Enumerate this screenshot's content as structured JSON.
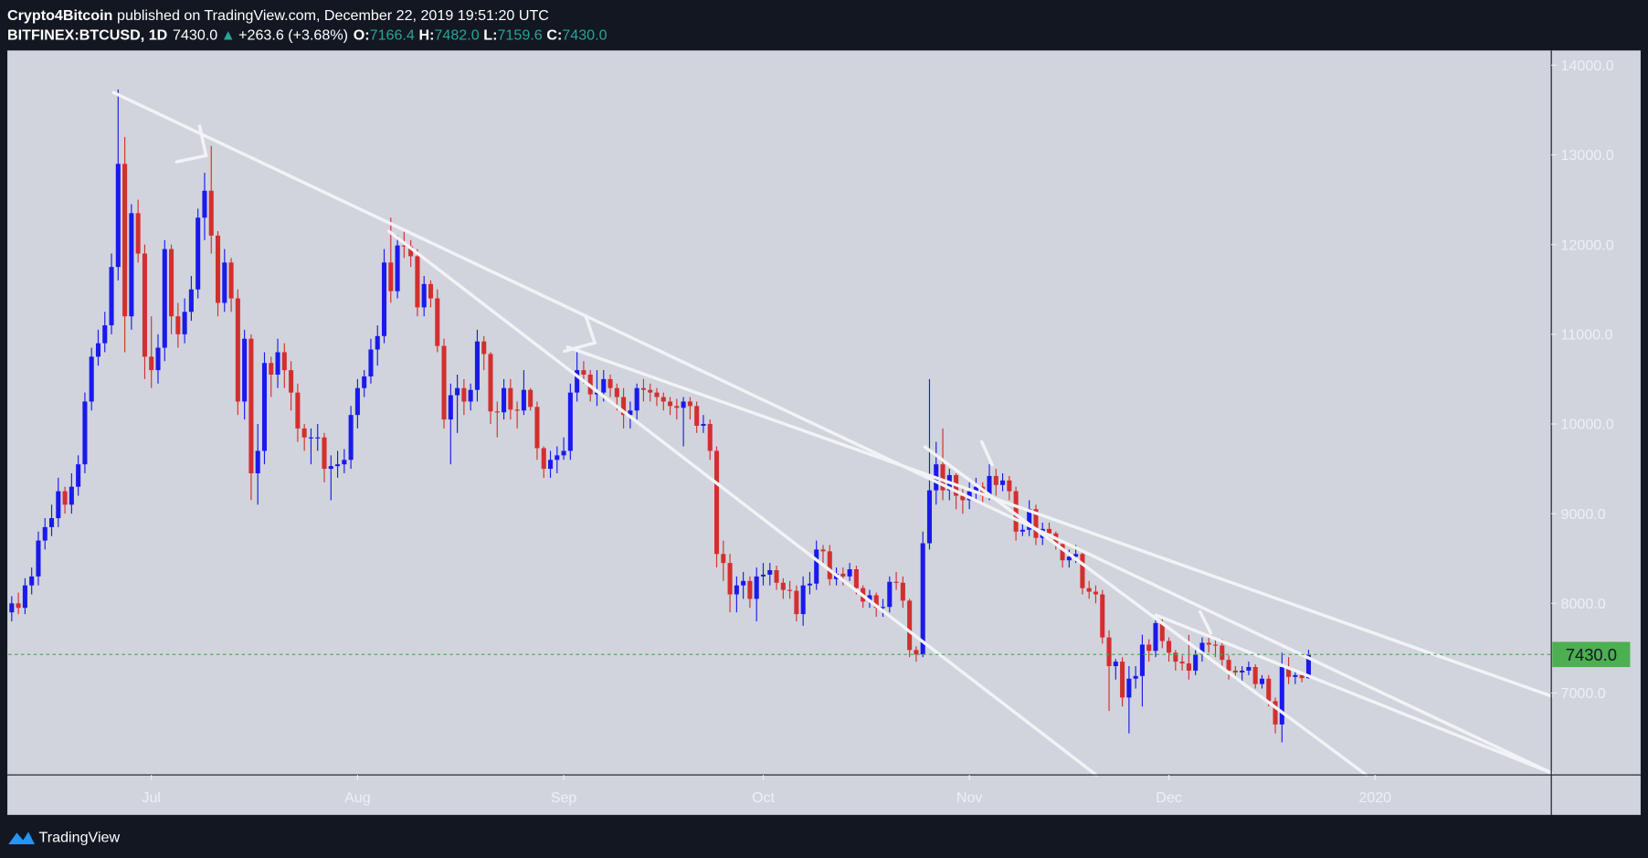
{
  "header": {
    "author": "Crypto4Bitcoin",
    "published": "published on TradingView.com, December 22, 2019 19:51:20 UTC",
    "symbol": "BITFINEX:BTCUSD, 1D",
    "last": "7430.0",
    "direction": "▲",
    "change": "+263.6 (+3.68%)",
    "o_label": "O:",
    "o": "7166.4",
    "h_label": "H:",
    "h": "7482.0",
    "l_label": "L:",
    "l": "7159.6",
    "c_label": "C:",
    "c": "7430.0"
  },
  "footer": {
    "brand": "TradingView"
  },
  "chart_data": {
    "type": "candlestick",
    "up_color": "#1a1aeb",
    "down_color": "#d32f2f",
    "background": "#d1d4dc",
    "ylim": [
      6087,
      14164
    ],
    "xlim": [
      -0.5,
      231.5
    ],
    "yticks": [
      {
        "value": 7000,
        "label": "7000.0"
      },
      {
        "value": 8000,
        "label": "8000.0"
      },
      {
        "value": 9000,
        "label": "9000.0"
      },
      {
        "value": 10000,
        "label": "10000.0"
      },
      {
        "value": 11000,
        "label": "11000.0"
      },
      {
        "value": 12000,
        "label": "12000.0"
      },
      {
        "value": 13000,
        "label": "13000.0"
      },
      {
        "value": 14000,
        "label": "14000.0"
      }
    ],
    "xticks": [
      {
        "value": 21,
        "label": "Jul"
      },
      {
        "value": 52,
        "label": "Aug"
      },
      {
        "value": 83,
        "label": "Sep"
      },
      {
        "value": 113,
        "label": "Oct"
      },
      {
        "value": 144,
        "label": "Nov"
      },
      {
        "value": 174,
        "label": "Dec"
      },
      {
        "value": 205,
        "label": "2020"
      }
    ],
    "last_price": {
      "value": 7430,
      "label": "7430.0",
      "color": "#4caf50"
    },
    "open": [
      7900,
      8000,
      7950,
      8200,
      8300,
      8700,
      8850,
      8950,
      9250,
      9100,
      9300,
      9550,
      10250,
      10750,
      10900,
      11100,
      11750,
      12900,
      11200,
      12350,
      11900,
      10750,
      10600,
      10850,
      11950,
      11200,
      11000,
      11250,
      11500,
      12300,
      12600,
      12100,
      11350,
      11800,
      11400,
      10250,
      10950,
      9450,
      9700,
      10680,
      10550,
      10800,
      10600,
      10350,
      9950,
      9850,
      9850,
      9850,
      9500,
      9530,
      9550,
      9600,
      10100,
      10400,
      10530,
      10830,
      10980,
      11800,
      11480,
      11990,
      11980,
      11870,
      11300,
      11560,
      11400,
      10870,
      10050,
      10320,
      10400,
      10250,
      10380,
      10920,
      10780,
      10140,
      10130,
      10400,
      10160,
      10150,
      10380,
      10190,
      9730,
      9500,
      9600,
      9650,
      9700,
      10350,
      10600,
      10550,
      10330,
      10350,
      10500,
      10400,
      10300,
      10100,
      10150,
      10400,
      10380,
      10350,
      10300,
      10250,
      10200,
      10180,
      10250,
      10200,
      9980,
      10000,
      9700,
      8550,
      8450,
      8100,
      8200,
      8250,
      8050,
      8300,
      8320,
      8370,
      8230,
      8150,
      8140,
      7880,
      8200,
      8220,
      8600,
      8580,
      8270,
      8330,
      8300,
      8380,
      8170,
      8020,
      8090,
      7950,
      7960,
      8240,
      8230,
      8030,
      7480,
      7430,
      8670,
      9260,
      9550,
      9260,
      9430,
      9200,
      9150,
      9250,
      9300,
      9200,
      9420,
      9320,
      9370,
      9250,
      8800,
      8820,
      9050,
      8730,
      8830,
      8780,
      8660,
      8480,
      8520,
      8550,
      8170,
      8130,
      8100,
      7620,
      7300,
      7350,
      6950,
      7160,
      7190,
      7540,
      7470,
      7780,
      7580,
      7450,
      7350,
      7330,
      7250,
      7430,
      7560,
      7540,
      7530,
      7370,
      7250,
      7230,
      7250,
      7290,
      7100,
      7160,
      6910,
      6650,
      7290,
      7180,
      7200,
      7166.4
    ],
    "high": [
      8080,
      8120,
      8280,
      8400,
      8800,
      8950,
      9100,
      9400,
      9300,
      9450,
      9650,
      10350,
      10850,
      11050,
      11250,
      11900,
      13730,
      13200,
      12450,
      12500,
      12000,
      11200,
      11000,
      12050,
      12000,
      11350,
      11400,
      11650,
      12400,
      12800,
      13100,
      12150,
      11950,
      11850,
      11500,
      11050,
      11000,
      10000,
      10800,
      10750,
      10950,
      10900,
      10700,
      10450,
      10000,
      9950,
      10000,
      9900,
      9650,
      9700,
      9720,
      10200,
      10500,
      10600,
      10950,
      11100,
      11950,
      12300,
      12100,
      12150,
      12050,
      11950,
      11650,
      11600,
      11500,
      10950,
      10450,
      10550,
      10500,
      10450,
      11050,
      10980,
      10800,
      10250,
      10500,
      10500,
      10250,
      10600,
      10400,
      10250,
      9750,
      9700,
      9750,
      9850,
      10450,
      10800,
      10700,
      10600,
      10600,
      10600,
      10550,
      10450,
      10400,
      10250,
      10450,
      10500,
      10450,
      10400,
      10350,
      10300,
      10280,
      10300,
      10300,
      10250,
      10100,
      10050,
      9750,
      8700,
      8550,
      8300,
      8350,
      8300,
      8400,
      8450,
      8450,
      8420,
      8280,
      8250,
      8200,
      8300,
      8350,
      8700,
      8650,
      8650,
      8400,
      8400,
      8450,
      8420,
      8200,
      8150,
      8120,
      8050,
      8300,
      8350,
      8300,
      8050,
      7520,
      8800,
      10500,
      9800,
      9950,
      9500,
      9450,
      9300,
      9350,
      9400,
      9350,
      9550,
      9500,
      9450,
      9420,
      9300,
      8900,
      9150,
      9100,
      8900,
      8900,
      8800,
      8700,
      8600,
      8650,
      8580,
      8250,
      8200,
      8150,
      7700,
      7380,
      7400,
      7300,
      7300,
      7650,
      7600,
      7850,
      7850,
      7620,
      7480,
      7420,
      7650,
      7480,
      7620,
      7620,
      7600,
      7600,
      7420,
      7300,
      7300,
      7350,
      7320,
      7200,
      7200,
      6950,
      7450,
      7400,
      7250,
      7230,
      7482
    ],
    "low": [
      7800,
      7880,
      7880,
      8100,
      8200,
      8600,
      8750,
      8850,
      9000,
      9000,
      9200,
      9450,
      10150,
      10650,
      10800,
      11000,
      11600,
      10800,
      11050,
      11800,
      10500,
      10400,
      10450,
      10700,
      11000,
      10850,
      10900,
      11150,
      11400,
      12050,
      11900,
      11200,
      11250,
      11250,
      10100,
      10050,
      9150,
      9100,
      9550,
      10300,
      10400,
      10400,
      10150,
      9800,
      9700,
      9550,
      9700,
      9350,
      9150,
      9400,
      9450,
      9500,
      9950,
      10300,
      10450,
      10650,
      10900,
      11350,
      11400,
      11850,
      11750,
      11200,
      11200,
      11300,
      10800,
      9950,
      9550,
      9900,
      10100,
      10150,
      10250,
      10600,
      10000,
      9850,
      10050,
      10050,
      9950,
      10100,
      10150,
      9600,
      9400,
      9400,
      9450,
      9600,
      9600,
      10250,
      10450,
      10250,
      10200,
      10250,
      10300,
      10150,
      9950,
      9950,
      10050,
      10250,
      10250,
      10200,
      10150,
      10100,
      10050,
      9750,
      10050,
      9900,
      9900,
      9600,
      8400,
      8250,
      7900,
      7900,
      8050,
      7950,
      7800,
      8200,
      8200,
      8150,
      8050,
      8050,
      7800,
      7750,
      8100,
      8150,
      8450,
      8200,
      8200,
      8200,
      8250,
      8100,
      7950,
      7950,
      7850,
      7850,
      7900,
      8150,
      7950,
      7400,
      7350,
      7400,
      8600,
      9100,
      9150,
      9150,
      9050,
      9000,
      9050,
      9150,
      9100,
      9150,
      9200,
      9250,
      9150,
      8700,
      8750,
      8750,
      8650,
      8650,
      8700,
      8600,
      8400,
      8400,
      8450,
      8100,
      8050,
      8000,
      7550,
      6800,
      7150,
      6850,
      6550,
      7050,
      6850,
      7350,
      7400,
      7500,
      7350,
      7250,
      7250,
      7150,
      7200,
      7350,
      7450,
      7400,
      7300,
      7150,
      7150,
      7100,
      7200,
      7050,
      7050,
      6850,
      6550,
      6450,
      7100,
      7100,
      7120,
      7159.6
    ],
    "close": [
      8000,
      7950,
      8200,
      8300,
      8700,
      8850,
      8950,
      9250,
      9100,
      9300,
      9550,
      10250,
      10750,
      10900,
      11100,
      11750,
      12900,
      11200,
      12350,
      11900,
      10750,
      10600,
      10850,
      11950,
      11200,
      11000,
      11250,
      11500,
      12300,
      12600,
      12100,
      11350,
      11800,
      11400,
      10250,
      10950,
      9450,
      9700,
      10680,
      10550,
      10800,
      10600,
      10350,
      9950,
      9850,
      9850,
      9850,
      9500,
      9530,
      9550,
      9600,
      10100,
      10400,
      10530,
      10830,
      10980,
      11800,
      11480,
      11990,
      11980,
      11870,
      11300,
      11560,
      11400,
      10870,
      10050,
      10320,
      10400,
      10250,
      10380,
      10920,
      10780,
      10140,
      10130,
      10400,
      10160,
      10150,
      10380,
      10190,
      9730,
      9500,
      9600,
      9650,
      9700,
      10350,
      10600,
      10550,
      10330,
      10350,
      10500,
      10400,
      10300,
      10100,
      10150,
      10400,
      10380,
      10350,
      10300,
      10250,
      10200,
      10180,
      10250,
      10200,
      9980,
      10000,
      9700,
      8550,
      8450,
      8100,
      8200,
      8250,
      8050,
      8300,
      8320,
      8370,
      8230,
      8150,
      8140,
      7880,
      8200,
      8220,
      8600,
      8580,
      8270,
      8330,
      8300,
      8380,
      8170,
      8020,
      8090,
      7950,
      7960,
      8240,
      8230,
      8030,
      7480,
      7430,
      8670,
      9260,
      9550,
      9260,
      9430,
      9200,
      9150,
      9250,
      9300,
      9200,
      9420,
      9320,
      9370,
      9250,
      8800,
      8820,
      9050,
      8730,
      8830,
      8780,
      8660,
      8480,
      8520,
      8550,
      8170,
      8130,
      8100,
      7620,
      7300,
      7350,
      6950,
      7160,
      7190,
      7540,
      7470,
      7780,
      7580,
      7450,
      7350,
      7330,
      7250,
      7430,
      7560,
      7540,
      7530,
      7370,
      7250,
      7230,
      7250,
      7290,
      7100,
      7160,
      6910,
      6650,
      7290,
      7180,
      7200,
      7166.4,
      7430
    ]
  }
}
